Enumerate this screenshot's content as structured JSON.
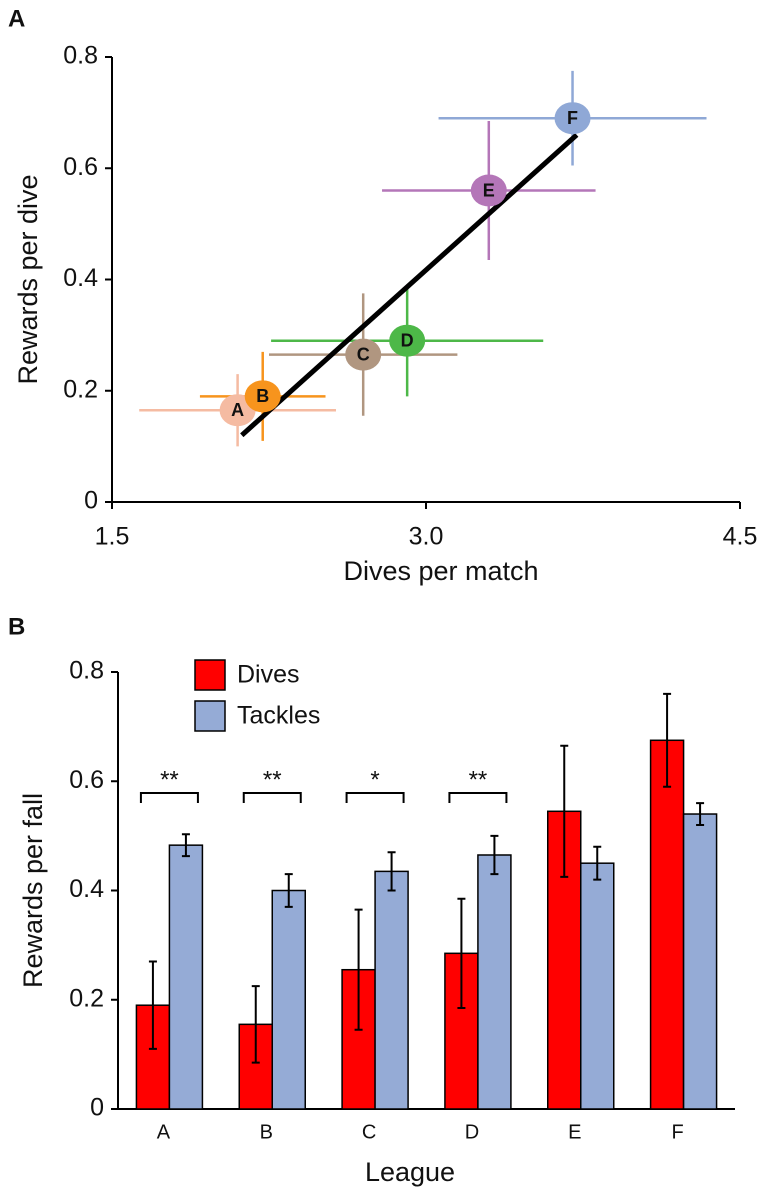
{
  "chart_data": [
    {
      "type": "scatter",
      "panel": "A",
      "x_label": "Dives per match",
      "y_label": "Rewards per dive",
      "xlim": [
        1.5,
        4.5
      ],
      "xticks": [
        1.5,
        {
          "value": 3,
          "label": "3.0"
        },
        4.5
      ],
      "ylim": [
        0,
        0.8
      ],
      "yticks": [
        0,
        0.2,
        0.4,
        0.6,
        0.8
      ],
      "points": [
        {
          "label": "A",
          "x": 2.1,
          "y": 0.165,
          "xerr": 0.47,
          "yerr": 0.065,
          "color": "#f5bba2"
        },
        {
          "label": "B",
          "x": 2.22,
          "y": 0.19,
          "xerr": 0.3,
          "yerr": 0.08,
          "color": "#f7941d"
        },
        {
          "label": "C",
          "x": 2.7,
          "y": 0.265,
          "xerr": 0.45,
          "yerr": 0.11,
          "color": "#b09680"
        },
        {
          "label": "D",
          "x": 2.91,
          "y": 0.29,
          "xerr": 0.65,
          "yerr": 0.1,
          "color": "#4db848"
        },
        {
          "label": "E",
          "x": 3.3,
          "y": 0.56,
          "xerr": 0.51,
          "yerr": 0.125,
          "color": "#b476b8"
        },
        {
          "label": "F",
          "x": 3.7,
          "y": 0.69,
          "xerr": 0.64,
          "yerr": 0.085,
          "color": "#8fa8d6"
        }
      ],
      "trend": {
        "x": [
          2.12,
          3.72
        ],
        "y": [
          0.12,
          0.66
        ],
        "color": "#000000"
      }
    },
    {
      "type": "bar",
      "panel": "B",
      "x_label": "League",
      "y_label": "Rewards per fall",
      "categories": [
        "A",
        "B",
        "C",
        "D",
        "E",
        "F"
      ],
      "ylim": [
        0,
        0.8
      ],
      "yticks": [
        0,
        0.2,
        0.4,
        0.6,
        0.8
      ],
      "series": [
        {
          "name": "Dives",
          "color": "#ff0000",
          "values": [
            0.19,
            0.155,
            0.255,
            0.285,
            0.545,
            0.675
          ],
          "errors": [
            0.08,
            0.07,
            0.11,
            0.1,
            0.12,
            0.085
          ]
        },
        {
          "name": "Tackles",
          "color": "#95abd6",
          "values": [
            0.483,
            0.4,
            0.435,
            0.465,
            0.45,
            0.54
          ],
          "errors": [
            0.02,
            0.03,
            0.035,
            0.035,
            0.03,
            0.02
          ]
        }
      ],
      "significance": [
        "**",
        "**",
        "*",
        "**",
        null,
        null
      ]
    }
  ]
}
